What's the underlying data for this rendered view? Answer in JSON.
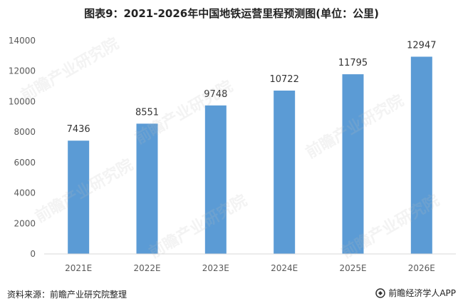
{
  "title": "图表9：2021-2026年中国地铁运营里程预测图(单位：公里)",
  "footer": {
    "source": "资料来源：前瞻产业研究院整理",
    "brand": "前瞻经济学人APP"
  },
  "watermark_text": "前瞻产业研究院",
  "colors": {
    "bar": "#5b9bd5",
    "axis": "#d9d9d9",
    "text": "#595959"
  },
  "chart_data": {
    "type": "bar",
    "categories": [
      "2021E",
      "2022E",
      "2023E",
      "2024E",
      "2025E",
      "2026E"
    ],
    "values": [
      7436,
      8551,
      9748,
      10722,
      11795,
      12947
    ],
    "ylim": [
      0,
      14000
    ],
    "yticks": [
      0,
      2000,
      4000,
      6000,
      8000,
      10000,
      12000,
      14000
    ],
    "grid": false,
    "legend": "none"
  }
}
